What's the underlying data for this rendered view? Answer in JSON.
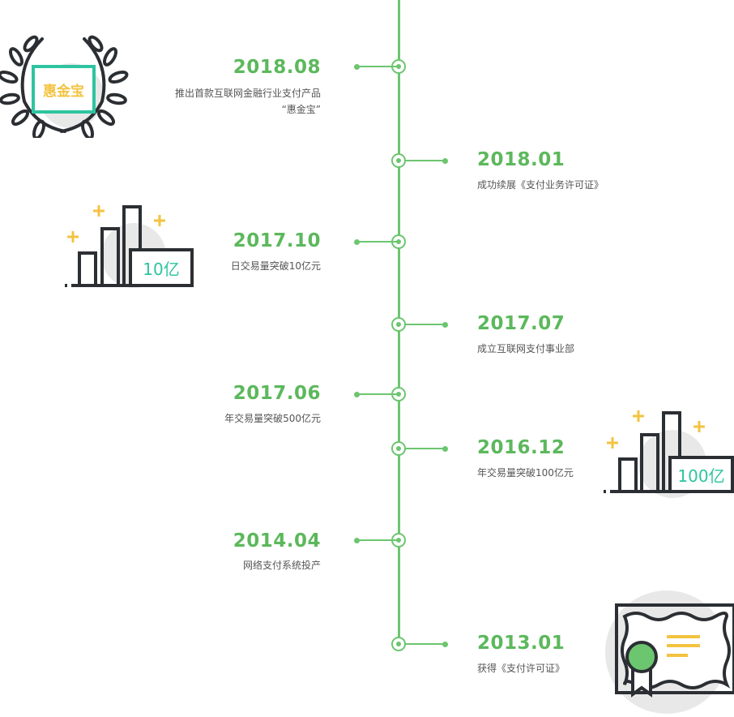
{
  "events": [
    {
      "date": "2018.08",
      "desc_line1": "推出首款互联网金融行业支付产品",
      "desc_line2": "“惠金宝”"
    },
    {
      "date": "2018.01",
      "desc": "成功续展《支付业务许可证》"
    },
    {
      "date": "2017.10",
      "desc": "日交易量突破10亿元"
    },
    {
      "date": "2017.07",
      "desc": "成立互联网支付事业部"
    },
    {
      "date": "2017.06",
      "desc": "年交易量突破500亿元"
    },
    {
      "date": "2016.12",
      "desc": "年交易量突破100亿元"
    },
    {
      "date": "2014.04",
      "desc": "网络支付系统投产"
    },
    {
      "date": "2013.01",
      "desc": "获得《支付许可证》"
    }
  ],
  "illustrations": {
    "laurel_text": "惠金宝",
    "chart1_label": "10亿",
    "chart2_label": "100亿"
  },
  "colors": {
    "green": "#6cc56f",
    "teal": "#2ec4a0",
    "yellow": "#f3c341",
    "dark": "#2b2f33",
    "gray": "#e8e8e8"
  }
}
